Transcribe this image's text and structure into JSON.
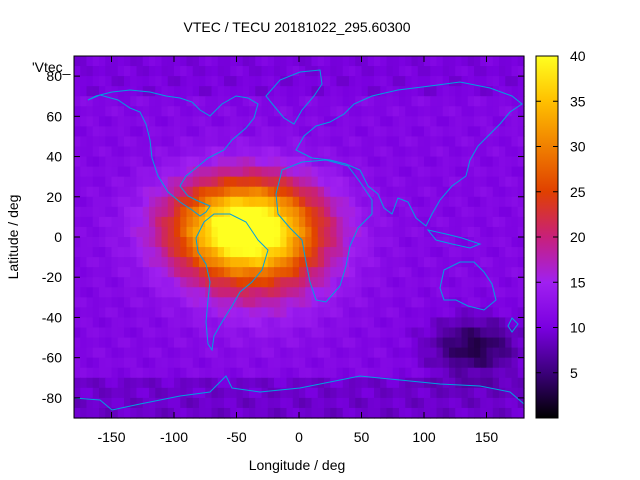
{
  "chart_data": {
    "type": "heatmap",
    "title": "VTEC / TECU 20181022_295.60300",
    "xlabel": "Longitude / deg",
    "ylabel": "Latitude / deg",
    "series_label": "'Vtec_",
    "xlim": [
      -180,
      180
    ],
    "ylim": [
      -90,
      90
    ],
    "x_ticks": [
      -150,
      -100,
      -50,
      0,
      50,
      100,
      150
    ],
    "y_ticks": [
      -80,
      -60,
      -40,
      -20,
      0,
      20,
      40,
      60,
      80
    ],
    "colorbar": {
      "range": [
        0,
        40
      ],
      "ticks": [
        5,
        10,
        15,
        20,
        25,
        30,
        35,
        40
      ],
      "palette": [
        "#000000",
        "#3b007a",
        "#7a00e0",
        "#a020f0",
        "#c8207a",
        "#e04000",
        "#f08000",
        "#ffc000",
        "#ffff20"
      ]
    },
    "grid": false,
    "background_level": 11,
    "features": [
      {
        "name": "equatorial anomaly peak",
        "lon": -45,
        "lat": 5,
        "value": 40
      },
      {
        "name": "south atlantic bulk",
        "lon": -30,
        "lat": -10,
        "value": 32
      },
      {
        "name": "southern dark region",
        "lon": 140,
        "lat": -55,
        "value": 3
      }
    ],
    "coastline_color": "#00a0e0"
  }
}
